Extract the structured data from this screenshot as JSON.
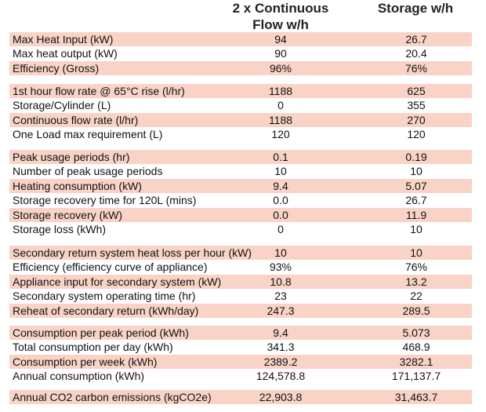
{
  "header": {
    "col1": "2 x Continuous Flow w/h",
    "col2": "Storage w/h"
  },
  "groups": [
    [
      [
        "Max Heat Input (kW)",
        "94",
        "26.7"
      ],
      [
        "Max heat output (kW)",
        "90",
        "20.4"
      ],
      [
        "Efficiency (Gross)",
        "96%",
        "76%"
      ]
    ],
    [
      [
        "1st hour flow rate @ 65°C rise (l/hr)",
        "1188",
        "625"
      ],
      [
        "Storage/Cylinder (L)",
        "0",
        "355"
      ],
      [
        "Continuous flow rate (l/hr)",
        "1188",
        "270"
      ],
      [
        "One Load max requirement (L)",
        "120",
        "120"
      ]
    ],
    [
      [
        "Peak usage periods (hr)",
        "0.1",
        "0.19"
      ],
      [
        "Number of peak usage periods",
        "10",
        "10"
      ],
      [
        "Heating consumption (kW)",
        "9.4",
        "5.07"
      ],
      [
        "Storage recovery time for 120L (mins)",
        "0.0",
        "26.7"
      ],
      [
        "Storage recovery (kW)",
        "0.0",
        "11.9"
      ],
      [
        "Storage loss (kWh)",
        "0",
        "10"
      ]
    ],
    [
      [
        "Secondary return system heat loss per hour (kW)",
        "10",
        "10"
      ],
      [
        "Efficiency (efficiency curve of appliance)",
        "93%",
        "76%"
      ],
      [
        "Appliance input for secondary system (kW)",
        "10.8",
        "13.2"
      ],
      [
        "Secondary system operating time (hr)",
        "23",
        "22"
      ],
      [
        "Reheat of secondary return (kWh/day)",
        "247.3",
        "289.5"
      ]
    ],
    [
      [
        "Consumption per peak period (kWh)",
        "9.4",
        "5.073"
      ],
      [
        "Total consumption per day (kWh)",
        "341.3",
        "468.9"
      ],
      [
        "Consumption per week (kWh)",
        "2389.2",
        "3282.1"
      ],
      [
        "Annual consumption (kWh)",
        "124,578.8",
        "171,137.7"
      ]
    ],
    [
      [
        "Annual CO2 carbon emissions (kgCO2e)",
        "22,903.8",
        "31,463.7"
      ]
    ]
  ]
}
